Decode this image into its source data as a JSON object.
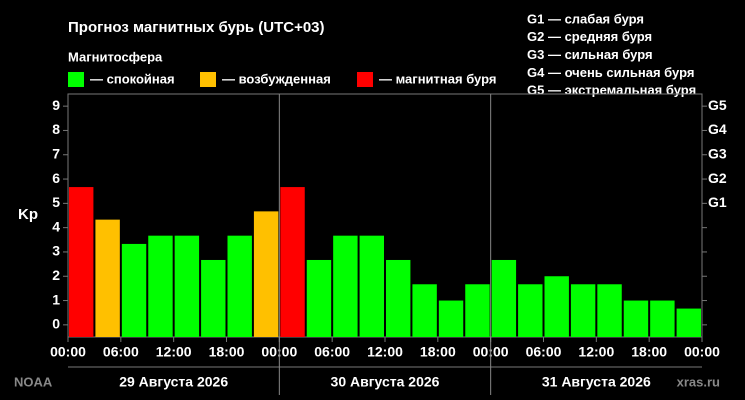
{
  "chart_data": {
    "type": "histogram",
    "title": "Прогноз магнитных бурь (UTC+03)",
    "subtitle": "Магнитосфера",
    "ylabel": "Kp",
    "legend": [
      {
        "name": "— спокойная",
        "color": "#00ff00"
      },
      {
        "name": "— возбужденная",
        "color": "#ffc000"
      },
      {
        "name": "— магнитная буря",
        "color": "#ff0000"
      }
    ],
    "notes": [
      "G1 — слабая буря",
      "G2 — средняя буря",
      "G3 — сильная буря",
      "G4 — очень сильная буря",
      "G5 — экстремальная буря"
    ],
    "bins": [
      0,
      3,
      6,
      9,
      12,
      15,
      18,
      21,
      24,
      27,
      30,
      33,
      36,
      39,
      42,
      45,
      48,
      51,
      54,
      57,
      60,
      63,
      66,
      69,
      72
    ],
    "values": [
      5.67,
      4.33,
      3.33,
      3.67,
      3.67,
      2.67,
      3.67,
      4.67,
      5.67,
      2.67,
      3.67,
      3.67,
      2.67,
      1.67,
      1.0,
      1.67,
      2.67,
      1.67,
      2.0,
      1.67,
      1.67,
      1.0,
      1.0,
      0.67
    ],
    "colors": [
      "#ff0000",
      "#ffc000",
      "#00ff00",
      "#00ff00",
      "#00ff00",
      "#00ff00",
      "#00ff00",
      "#ffc000",
      "#ff0000",
      "#00ff00",
      "#00ff00",
      "#00ff00",
      "#00ff00",
      "#00ff00",
      "#00ff00",
      "#00ff00",
      "#00ff00",
      "#00ff00",
      "#00ff00",
      "#00ff00",
      "#00ff00",
      "#00ff00",
      "#00ff00",
      "#00ff00"
    ],
    "xlim": [
      0,
      72
    ],
    "xticks": [
      {
        "value": 0,
        "label": "00:00"
      },
      {
        "value": 6,
        "label": "06:00"
      },
      {
        "value": 12,
        "label": "12:00"
      },
      {
        "value": 18,
        "label": "18:00"
      },
      {
        "value": 24,
        "label": "00:00"
      },
      {
        "value": 30,
        "label": "06:00"
      },
      {
        "value": 36,
        "label": "12:00"
      },
      {
        "value": 42,
        "label": "18:00"
      },
      {
        "value": 48,
        "label": "00:00"
      },
      {
        "value": 54,
        "label": "06:00"
      },
      {
        "value": 60,
        "label": "12:00"
      },
      {
        "value": 66,
        "label": "18:00"
      },
      {
        "value": 72,
        "label": "00:00"
      }
    ],
    "days": [
      "29 Августа 2026",
      "30 Августа 2026",
      "31 Августа 2026"
    ],
    "ylim": [
      -0.5,
      9.5
    ],
    "yticks": [
      0,
      1,
      2,
      3,
      4,
      5,
      6,
      7,
      8,
      9
    ],
    "y2lim": [
      -0.5,
      9.5
    ],
    "y2ticks": [
      {
        "value": 5,
        "label": "G1"
      },
      {
        "value": 6,
        "label": "G2"
      },
      {
        "value": 7,
        "label": "G3"
      },
      {
        "value": 8,
        "label": "G4"
      },
      {
        "value": 9,
        "label": "G5"
      }
    ],
    "source": "NOAA",
    "site": "xras.ru"
  }
}
